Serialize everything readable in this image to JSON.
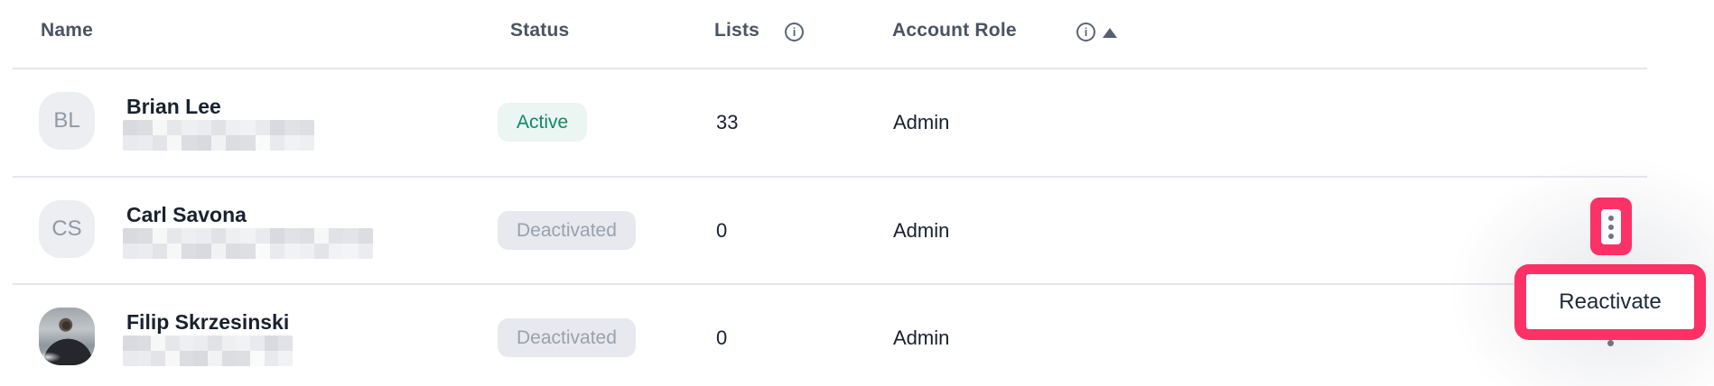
{
  "header": {
    "columns": [
      {
        "label": "Name"
      },
      {
        "label": "Status"
      },
      {
        "label": "Lists",
        "info": true
      },
      {
        "label": "Account Role",
        "info": true,
        "sort": "ascending"
      }
    ],
    "info_icon_glyph": "i"
  },
  "rows": [
    {
      "avatar_initials": "BL",
      "name": "Brian Lee",
      "email_redacted": true,
      "status": "Active",
      "lists": "33",
      "role": "Admin"
    },
    {
      "avatar_initials": "CS",
      "name": "Carl Savona",
      "email_redacted": true,
      "status": "Deactivated",
      "lists": "0",
      "role": "Admin",
      "row_menu_open": true
    },
    {
      "avatar_photo": "man-with-sunglasses-by-sea",
      "name": "Filip Skrzesinski",
      "email_redacted": true,
      "status": "Deactivated",
      "lists": "0",
      "role": "Admin"
    }
  ],
  "row_menu": {
    "items": [
      {
        "label": "Reactivate"
      }
    ]
  },
  "annotations": {
    "highlight_color": "#FC3166",
    "highlighted_elements": [
      "row-actions-kebab-button",
      "reactivate-menu-item"
    ]
  },
  "colors": {
    "active_badge_text": "#0E8A64",
    "active_badge_bg": "#EBF5F2",
    "deactivated_badge_text": "#99A1AD",
    "deactivated_badge_bg": "#E8E9EE",
    "header_text": "#4A5462",
    "body_text": "#18222F",
    "divider": "#E6E7EB"
  }
}
